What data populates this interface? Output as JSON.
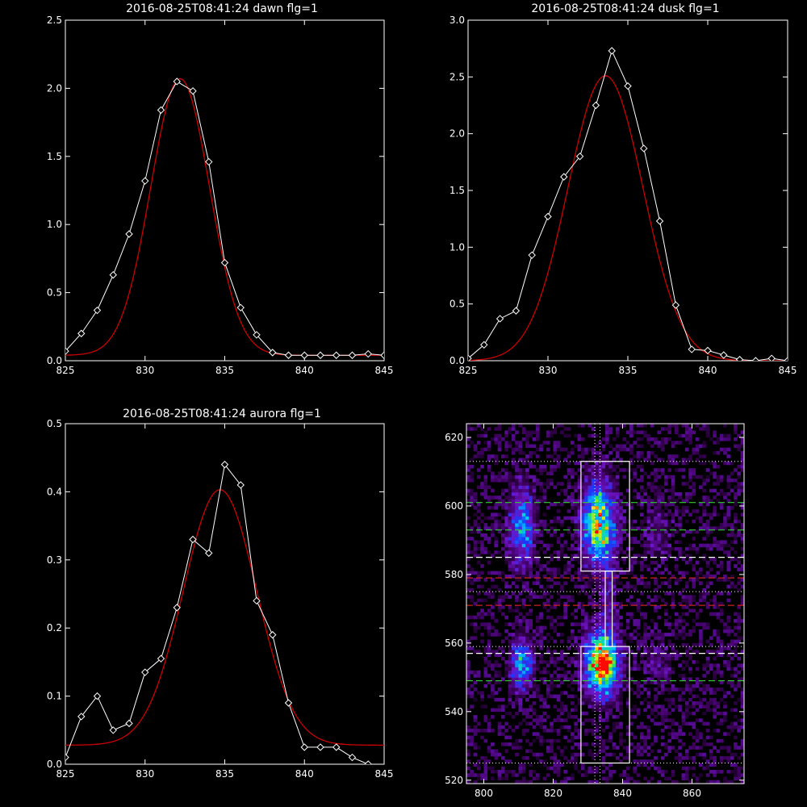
{
  "chart_data": [
    {
      "id": "dawn",
      "type": "line",
      "title": "2016-08-25T08:41:24 dawn flg=1",
      "xlim": [
        825,
        845
      ],
      "ylim": [
        0,
        2.5
      ],
      "xticks": [
        825,
        830,
        835,
        840,
        845
      ],
      "yticks": [
        0.0,
        0.5,
        1.0,
        1.5,
        2.0,
        2.5
      ],
      "ytick_labels": [
        "0.0",
        "0.5",
        "1.0",
        "1.5",
        "2.0",
        "2.5"
      ],
      "series": [
        {
          "color": "#ffffff",
          "markers": "diamond",
          "x": [
            825,
            826,
            827,
            828,
            829,
            830,
            831,
            832,
            833,
            834,
            835,
            836,
            837,
            838,
            839,
            840,
            841,
            842,
            843,
            844,
            845
          ],
          "y": [
            0.07,
            0.2,
            0.37,
            0.63,
            0.93,
            1.32,
            1.84,
            2.05,
            1.98,
            1.46,
            0.72,
            0.39,
            0.19,
            0.06,
            0.04,
            0.04,
            0.04,
            0.04,
            0.04,
            0.05,
            0.04
          ]
        },
        {
          "color": "#cc0000",
          "fit": "gaussian",
          "amplitude": 2.03,
          "center": 832.2,
          "sigma": 1.85,
          "baseline": 0.04
        }
      ]
    },
    {
      "id": "dusk",
      "type": "line",
      "title": "2016-08-25T08:41:24 dusk flg=1",
      "xlim": [
        825,
        845
      ],
      "ylim": [
        0,
        3.0
      ],
      "xticks": [
        825,
        830,
        835,
        840,
        845
      ],
      "yticks": [
        0.0,
        0.5,
        1.0,
        1.5,
        2.0,
        2.5,
        3.0
      ],
      "ytick_labels": [
        "0.0",
        "0.5",
        "1.0",
        "1.5",
        "2.0",
        "2.5",
        "3.0"
      ],
      "series": [
        {
          "color": "#ffffff",
          "markers": "diamond",
          "x": [
            825,
            826,
            827,
            828,
            829,
            830,
            831,
            832,
            833,
            834,
            835,
            836,
            837,
            838,
            839,
            840,
            841,
            842,
            843,
            844,
            845
          ],
          "y": [
            0.02,
            0.14,
            0.37,
            0.44,
            0.93,
            1.27,
            1.62,
            1.8,
            2.25,
            2.73,
            2.42,
            1.87,
            1.23,
            0.49,
            0.1,
            0.09,
            0.05,
            0.01,
            0.0,
            0.02,
            0.0
          ]
        },
        {
          "color": "#cc0000",
          "fit": "gaussian",
          "amplitude": 2.51,
          "center": 833.6,
          "sigma": 2.35,
          "baseline": 0.0
        }
      ]
    },
    {
      "id": "aurora",
      "type": "line",
      "title": "2016-08-25T08:41:24 aurora flg=1",
      "xlim": [
        825,
        845
      ],
      "ylim": [
        0,
        0.5
      ],
      "xticks": [
        825,
        830,
        835,
        840,
        845
      ],
      "yticks": [
        0.0,
        0.1,
        0.2,
        0.3,
        0.4,
        0.5
      ],
      "ytick_labels": [
        "0.0",
        "0.1",
        "0.2",
        "0.3",
        "0.4",
        "0.5"
      ],
      "series": [
        {
          "color": "#ffffff",
          "markers": "diamond",
          "x": [
            825,
            826,
            827,
            828,
            829,
            830,
            831,
            832,
            833,
            834,
            835,
            836,
            837,
            838,
            839,
            840,
            841,
            842,
            843,
            844
          ],
          "y": [
            0.01,
            0.07,
            0.1,
            0.05,
            0.06,
            0.135,
            0.155,
            0.23,
            0.33,
            0.31,
            0.44,
            0.41,
            0.24,
            0.19,
            0.09,
            0.025,
            0.025,
            0.025,
            0.01,
            0.0
          ]
        },
        {
          "color": "#cc0000",
          "fit": "gaussian",
          "amplitude": 0.375,
          "center": 834.7,
          "sigma": 2.3,
          "baseline": 0.028
        }
      ]
    },
    {
      "id": "image",
      "type": "heatmap",
      "title": "",
      "xlim": [
        795,
        875
      ],
      "ylim": [
        519,
        624
      ],
      "xticks": [
        800,
        820,
        840,
        860
      ],
      "yticks": [
        520,
        540,
        560,
        580,
        600,
        620
      ],
      "ytick_labels": [
        "520",
        "540",
        "560",
        "580",
        "600",
        "620"
      ],
      "blobs": [
        {
          "x": 834,
          "y": 554,
          "sx": 3.2,
          "sy": 6,
          "amp": 1.0
        },
        {
          "x": 833,
          "y": 595,
          "sx": 3.2,
          "sy": 8,
          "amp": 0.75
        },
        {
          "x": 811,
          "y": 594,
          "sx": 2.5,
          "sy": 8,
          "amp": 0.45
        },
        {
          "x": 811,
          "y": 554,
          "sx": 2.2,
          "sy": 5,
          "amp": 0.5
        },
        {
          "x": 836,
          "y": 575,
          "sx": 1.5,
          "sy": 10,
          "amp": 0.18
        },
        {
          "x": 850,
          "y": 593,
          "sx": 4,
          "sy": 8,
          "amp": 0.1
        },
        {
          "x": 850,
          "y": 554,
          "sx": 4,
          "sy": 6,
          "amp": 0.1
        }
      ],
      "boxes": [
        {
          "x0": 828,
          "x1": 842,
          "y0": 581,
          "y1": 613
        },
        {
          "x0": 828,
          "x1": 842,
          "y0": 525,
          "y1": 559
        },
        {
          "x0": 835,
          "x1": 837,
          "y0": 559,
          "y1": 581
        }
      ],
      "dotted_h": [
        525,
        559,
        575,
        613
      ],
      "dotted_v": [
        832,
        833.5
      ],
      "dashed_white": [
        585,
        557
      ],
      "dashed_green": [
        601,
        593,
        549
      ],
      "dashed_red": [
        579,
        571
      ],
      "colors": {
        "green": "#33cc33",
        "red": "#cc2222",
        "white": "#ffffff"
      }
    }
  ]
}
